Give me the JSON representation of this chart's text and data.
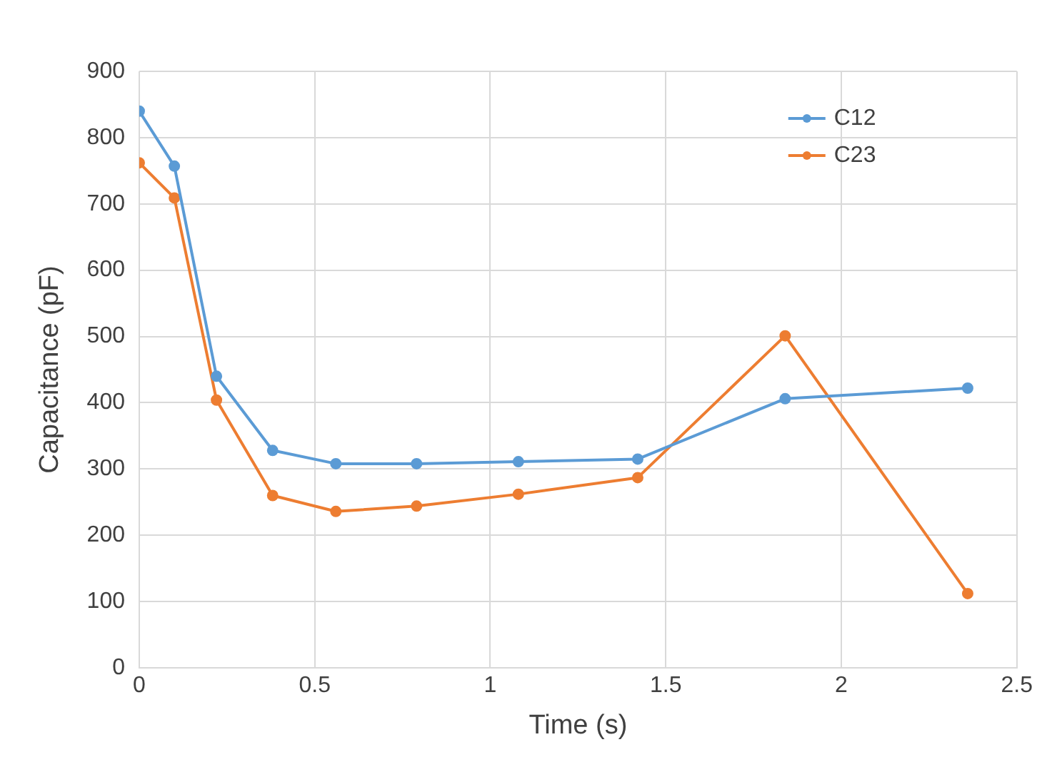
{
  "chart_data": {
    "type": "line",
    "xlabel": "Time (s)",
    "ylabel": "Capacitance (pF)",
    "x": [
      0,
      0.1,
      0.22,
      0.38,
      0.56,
      0.79,
      1.08,
      1.42,
      1.84,
      2.36
    ],
    "series": [
      {
        "name": "C12",
        "color": "#5b9bd5",
        "values": [
          840,
          757,
          440,
          328,
          308,
          308,
          311,
          315,
          406,
          422
        ]
      },
      {
        "name": "C23",
        "color": "#ed7d31",
        "values": [
          762,
          709,
          404,
          260,
          236,
          244,
          262,
          287,
          501,
          112
        ]
      }
    ],
    "xlim": [
      0,
      2.5
    ],
    "xticks": [
      0,
      0.5,
      1,
      1.5,
      2,
      2.5
    ],
    "ylim": [
      0,
      900
    ],
    "yticks": [
      0,
      100,
      200,
      300,
      400,
      500,
      600,
      700,
      800,
      900
    ],
    "grid": true,
    "legend": "top right",
    "marker": "circle",
    "line_style": "solid"
  }
}
